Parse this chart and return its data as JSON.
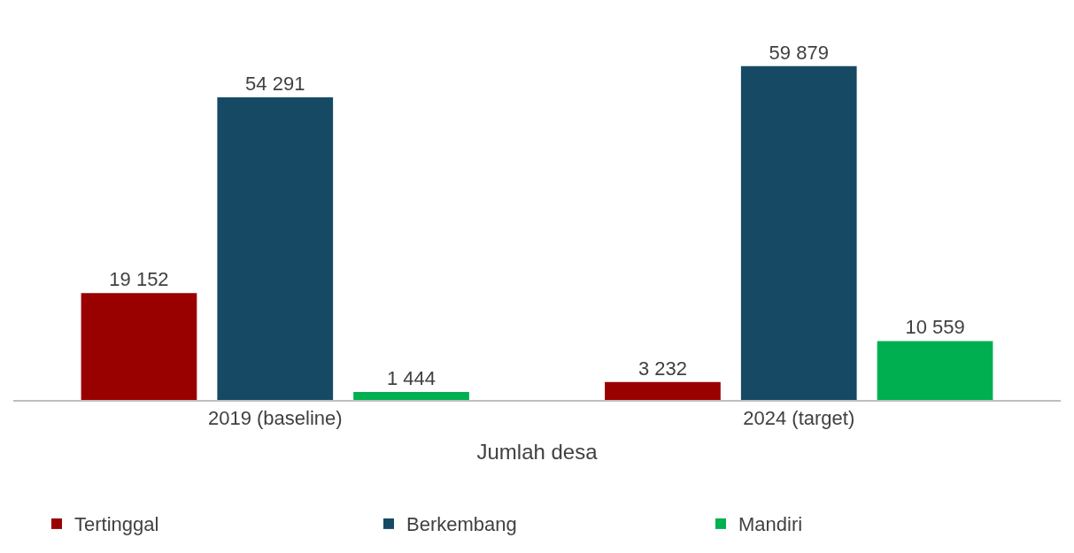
{
  "chart_data": {
    "type": "bar",
    "xlabel": "Jumlah desa",
    "categories": [
      "2019 (baseline)",
      "2024 (target)"
    ],
    "series": [
      {
        "name": "Tertinggal",
        "color": "#990000",
        "values": [
          19152,
          3232
        ],
        "value_labels": [
          "19 152",
          "3 232"
        ]
      },
      {
        "name": "Berkembang",
        "color": "#164a64",
        "values": [
          54291,
          59879
        ],
        "value_labels": [
          "54 291",
          "59 879"
        ]
      },
      {
        "name": "Mandiri",
        "color": "#00b050",
        "values": [
          1444,
          10559
        ],
        "value_labels": [
          "1 444",
          "10 559"
        ]
      }
    ],
    "legend": "bottom"
  }
}
